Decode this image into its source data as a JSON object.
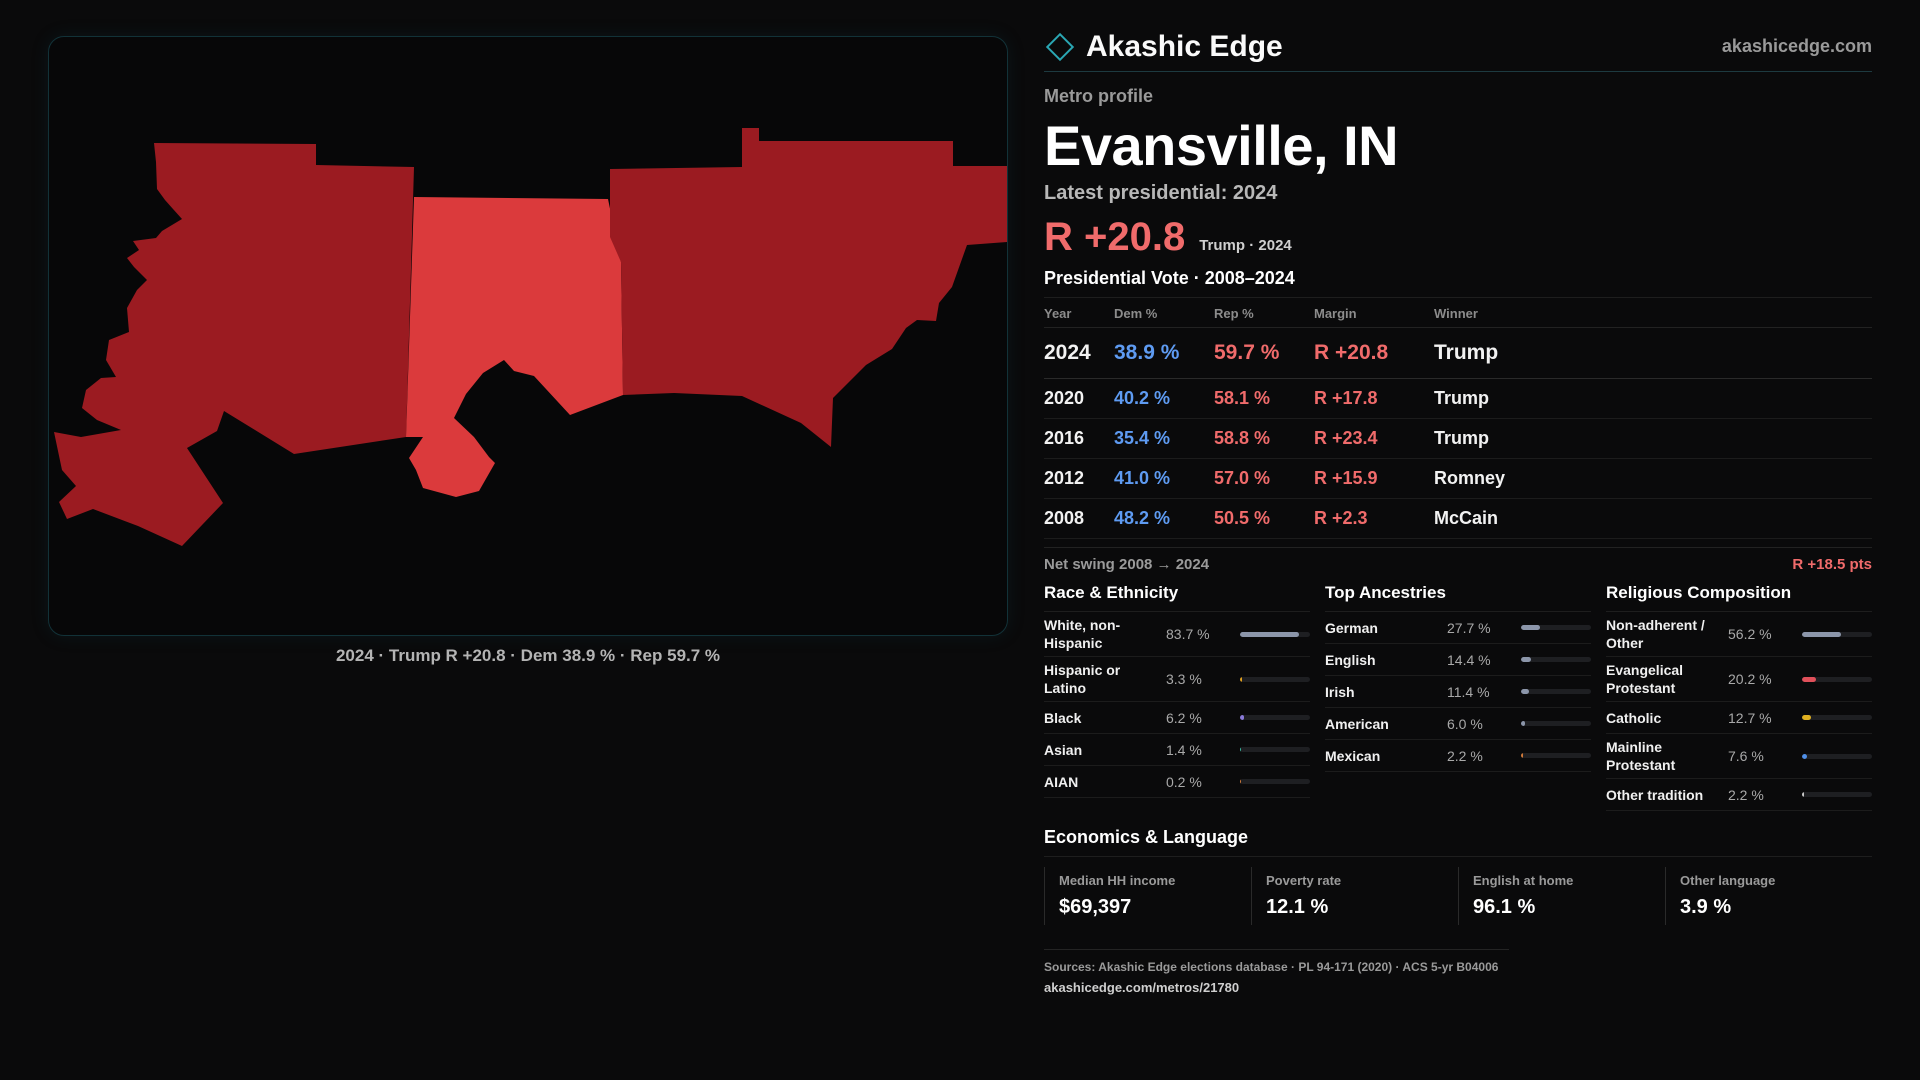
{
  "map": {
    "caption": "2024 · Trump R +20.8 · Dem 38.9 % · Rep 59.7 %",
    "colors": {
      "strong_rep": "#9b1b21",
      "lean_rep": "#db3a3c"
    }
  },
  "brand": {
    "name": "Akashic Edge",
    "url": "akashicedge.com",
    "logo_icon": "diamond-outline-icon"
  },
  "profile": {
    "eyebrow": "Metro profile",
    "title": "Evansville, IN",
    "latest": "Latest presidential: 2024",
    "headline_margin": "R +20.8",
    "headline_sub": "Trump · 2024"
  },
  "vote_table": {
    "title": "Presidential Vote · 2008–2024",
    "headers": {
      "year": "Year",
      "dem": "Dem %",
      "rep": "Rep %",
      "margin": "Margin",
      "winner": "Winner"
    },
    "rows": [
      {
        "year": "2024",
        "dem": "38.9 %",
        "rep": "59.7 %",
        "margin": "R +20.8",
        "winner": "Trump"
      },
      {
        "year": "2020",
        "dem": "40.2 %",
        "rep": "58.1 %",
        "margin": "R +17.8",
        "winner": "Trump"
      },
      {
        "year": "2016",
        "dem": "35.4 %",
        "rep": "58.8 %",
        "margin": "R +23.4",
        "winner": "Trump"
      },
      {
        "year": "2012",
        "dem": "41.0 %",
        "rep": "57.0 %",
        "margin": "R +15.9",
        "winner": "Romney"
      },
      {
        "year": "2008",
        "dem": "48.2 %",
        "rep": "50.5 %",
        "margin": "R +2.3",
        "winner": "McCain"
      }
    ],
    "swing_label": "Net swing 2008 → 2024",
    "swing_value": "R +18.5 pts"
  },
  "race": {
    "title": "Race & Ethnicity",
    "items": [
      {
        "label": "White, non-Hispanic",
        "value": "83.7 %",
        "pct": 83.7,
        "color": "#8c96aa"
      },
      {
        "label": "Hispanic or Latino",
        "value": "3.3 %",
        "pct": 3.3,
        "color": "#e0a020"
      },
      {
        "label": "Black",
        "value": "6.2 %",
        "pct": 6.2,
        "color": "#8a7ad8"
      },
      {
        "label": "Asian",
        "value": "1.4 %",
        "pct": 1.4,
        "color": "#3cb8a0"
      },
      {
        "label": "AIAN",
        "value": "0.2 %",
        "pct": 0.2,
        "color": "#d07a3a"
      }
    ]
  },
  "ancestry": {
    "title": "Top Ancestries",
    "items": [
      {
        "label": "German",
        "value": "27.7 %",
        "pct": 27.7,
        "color": "#8c96aa"
      },
      {
        "label": "English",
        "value": "14.4 %",
        "pct": 14.4,
        "color": "#8c96aa"
      },
      {
        "label": "Irish",
        "value": "11.4 %",
        "pct": 11.4,
        "color": "#8c96aa"
      },
      {
        "label": "American",
        "value": "6.0 %",
        "pct": 6.0,
        "color": "#8c96aa"
      },
      {
        "label": "Mexican",
        "value": "2.2 %",
        "pct": 2.2,
        "color": "#d07a3a"
      }
    ]
  },
  "religion": {
    "title": "Religious Composition",
    "items": [
      {
        "label": "Non-adherent / Other",
        "value": "56.2 %",
        "pct": 56.2,
        "color": "#8c96aa"
      },
      {
        "label": "Evangelical Protestant",
        "value": "20.2 %",
        "pct": 20.2,
        "color": "#e0505a"
      },
      {
        "label": "Catholic",
        "value": "12.7 %",
        "pct": 12.7,
        "color": "#e0b020"
      },
      {
        "label": "Mainline Protestant",
        "value": "7.6 %",
        "pct": 7.6,
        "color": "#4f8fe8"
      },
      {
        "label": "Other tradition",
        "value": "2.2 %",
        "pct": 2.2,
        "color": "#c8c8c8"
      }
    ]
  },
  "economics": {
    "title": "Economics & Language",
    "cards": [
      {
        "label": "Median HH income",
        "value": "$69,397"
      },
      {
        "label": "Poverty rate",
        "value": "12.1 %"
      },
      {
        "label": "English at home",
        "value": "96.1 %"
      },
      {
        "label": "Other language",
        "value": "3.9 %"
      }
    ]
  },
  "sources": {
    "text": "Sources: Akashic Edge elections database · PL 94-171 (2020) · ACS 5-yr B04006",
    "url": "akashicedge.com/metros/21780"
  }
}
